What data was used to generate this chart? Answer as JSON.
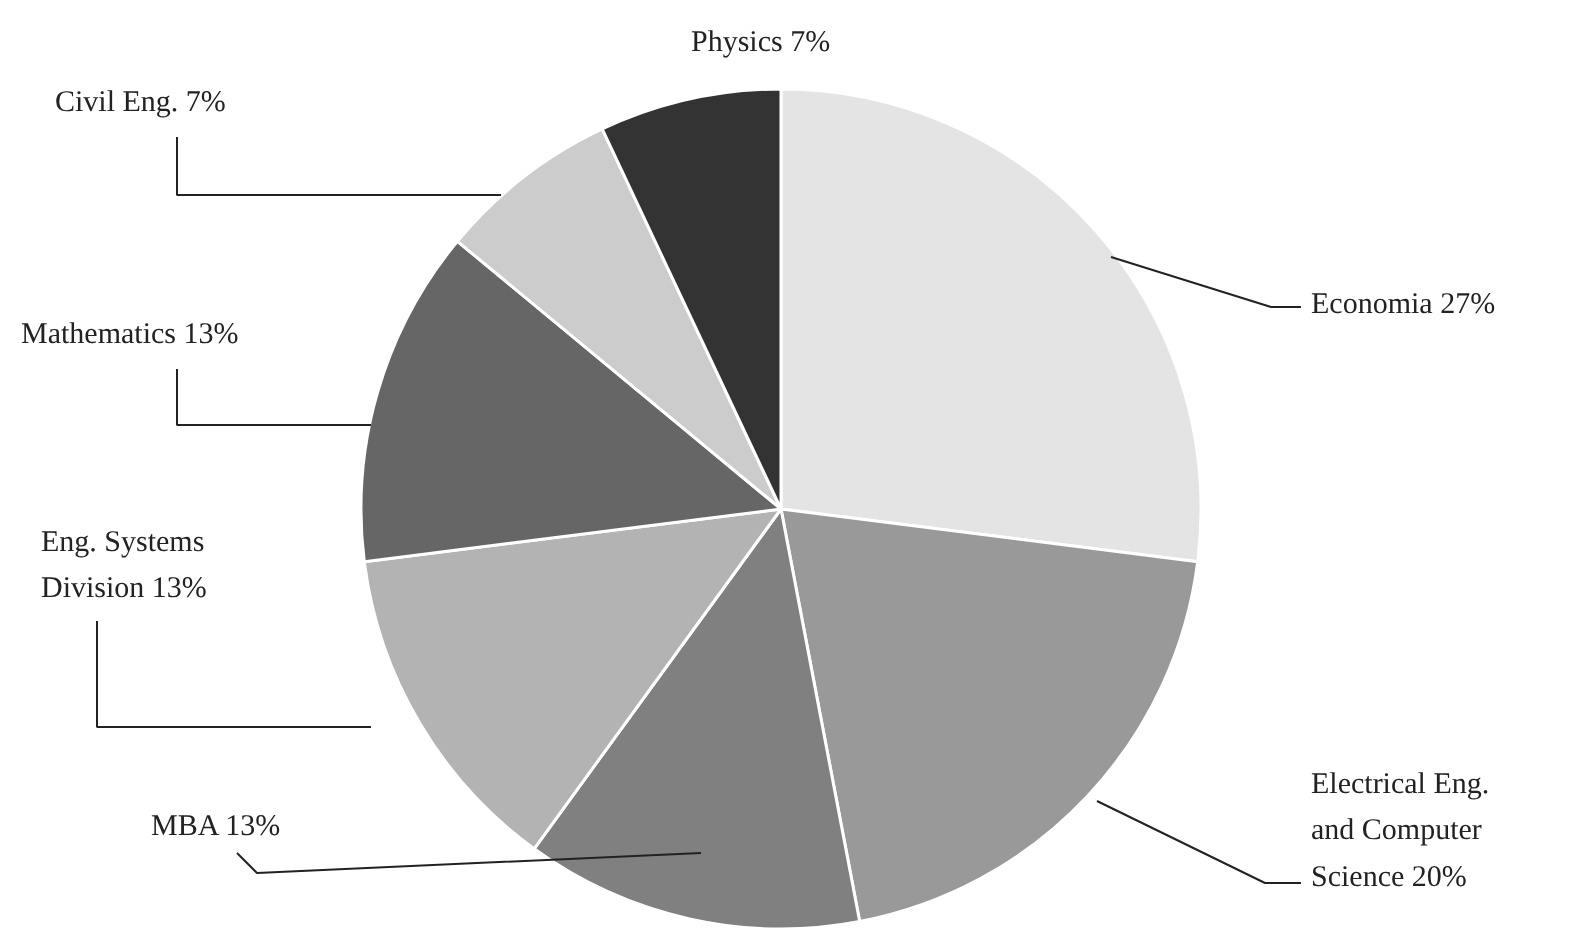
{
  "chart_data": {
    "type": "pie",
    "categories": [
      "Economia",
      "Electrical Eng.\nand Computer\nScience",
      "MBA",
      "Eng. Systems\nDivision",
      "Mathematics",
      "Civil Eng.",
      "Physics"
    ],
    "values": [
      27,
      20,
      13,
      13,
      13,
      7,
      7
    ],
    "value_labels": [
      "27%",
      "20%",
      "13%",
      "13%",
      "13%",
      "7%",
      "7%"
    ],
    "colors": [
      "#e4e4e4",
      "#999999",
      "#808080",
      "#b3b3b3",
      "#666666",
      "#cccccc",
      "#333333"
    ]
  }
}
